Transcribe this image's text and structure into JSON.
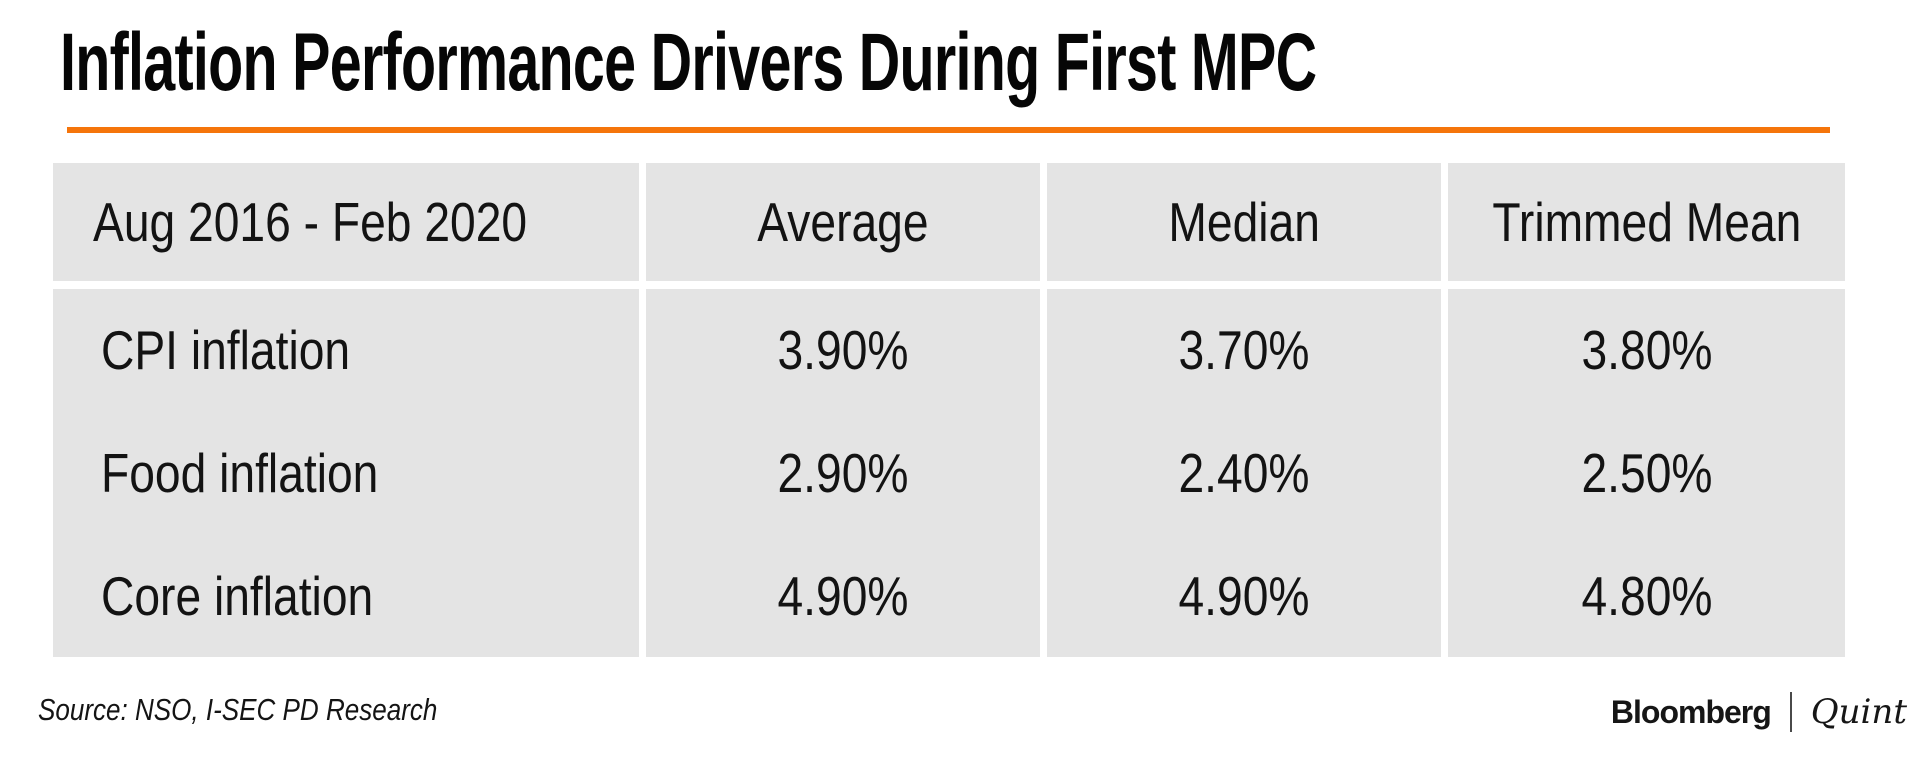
{
  "title": "Inflation Performance Drivers During First MPC",
  "table": {
    "period_header": "Aug 2016 - Feb 2020",
    "columns": [
      "Average",
      "Median",
      "Trimmed Mean"
    ],
    "rows": [
      {
        "label": "CPI inflation",
        "values": [
          "3.90%",
          "3.70%",
          "3.80%"
        ]
      },
      {
        "label": "Food inflation",
        "values": [
          "2.90%",
          "2.40%",
          "2.50%"
        ]
      },
      {
        "label": "Core inflation",
        "values": [
          "4.90%",
          "4.90%",
          "4.80%"
        ]
      }
    ]
  },
  "footer": {
    "source": "Source: NSO, I-SEC PD Research",
    "brand_left": "Bloomberg",
    "brand_right": "Quint"
  },
  "colors": {
    "accent_orange": "#F5750B",
    "cell_gray": "#E4E4E4",
    "text_black": "#131313"
  },
  "chart_data": {
    "type": "table",
    "title": "Inflation Performance Drivers During First MPC",
    "period": "Aug 2016 - Feb 2020",
    "row_categories": [
      "CPI inflation",
      "Food inflation",
      "Core inflation"
    ],
    "columns": [
      "Average",
      "Median",
      "Trimmed Mean"
    ],
    "series": [
      {
        "name": "Average",
        "values": [
          3.9,
          2.9,
          4.9
        ]
      },
      {
        "name": "Median",
        "values": [
          3.7,
          2.4,
          4.9
        ]
      },
      {
        "name": "Trimmed Mean",
        "values": [
          3.8,
          2.5,
          4.8
        ]
      }
    ],
    "unit": "percent",
    "source": "NSO, I-SEC PD Research"
  }
}
